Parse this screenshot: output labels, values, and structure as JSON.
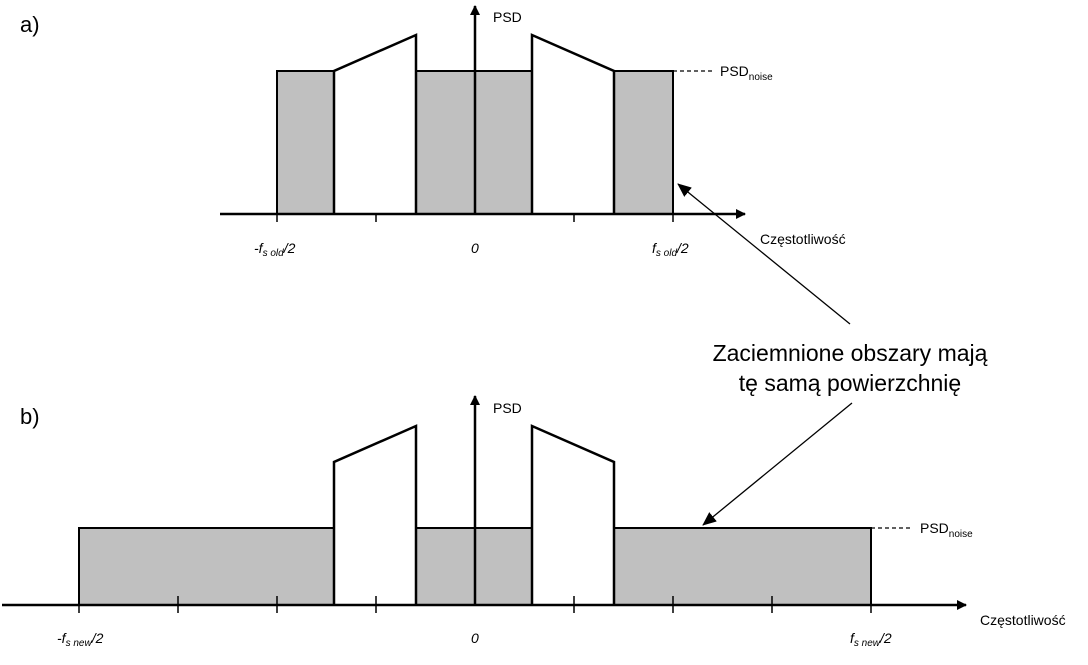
{
  "panel_a": {
    "label": "a)",
    "y_axis_label": "PSD",
    "x_axis_label": "Częstotliwość",
    "psd_noise": {
      "main": "PSD",
      "sub": "noise"
    },
    "ticks": {
      "left": {
        "sign": "-",
        "f": "f",
        "sub": "s old",
        "suffix": "/2"
      },
      "zero": "0",
      "right": {
        "sign": "",
        "f": "f",
        "sub": "s old",
        "suffix": "/2"
      }
    }
  },
  "panel_b": {
    "label": "b)",
    "y_axis_label": "PSD",
    "x_axis_label": "Częstotliwość",
    "psd_noise": {
      "main": "PSD",
      "sub": "noise"
    },
    "ticks": {
      "left": {
        "sign": "-",
        "f": "f",
        "sub": "s new",
        "suffix": "/2"
      },
      "zero": "0",
      "right": {
        "sign": "",
        "f": "f",
        "sub": "s new",
        "suffix": "/2"
      }
    }
  },
  "annotation": {
    "line1": "Zaciemnione obszary mają",
    "line2": "tę samą powierzchnię"
  },
  "colors": {
    "shaded": "#c0c0c0",
    "stroke": "#000000"
  }
}
